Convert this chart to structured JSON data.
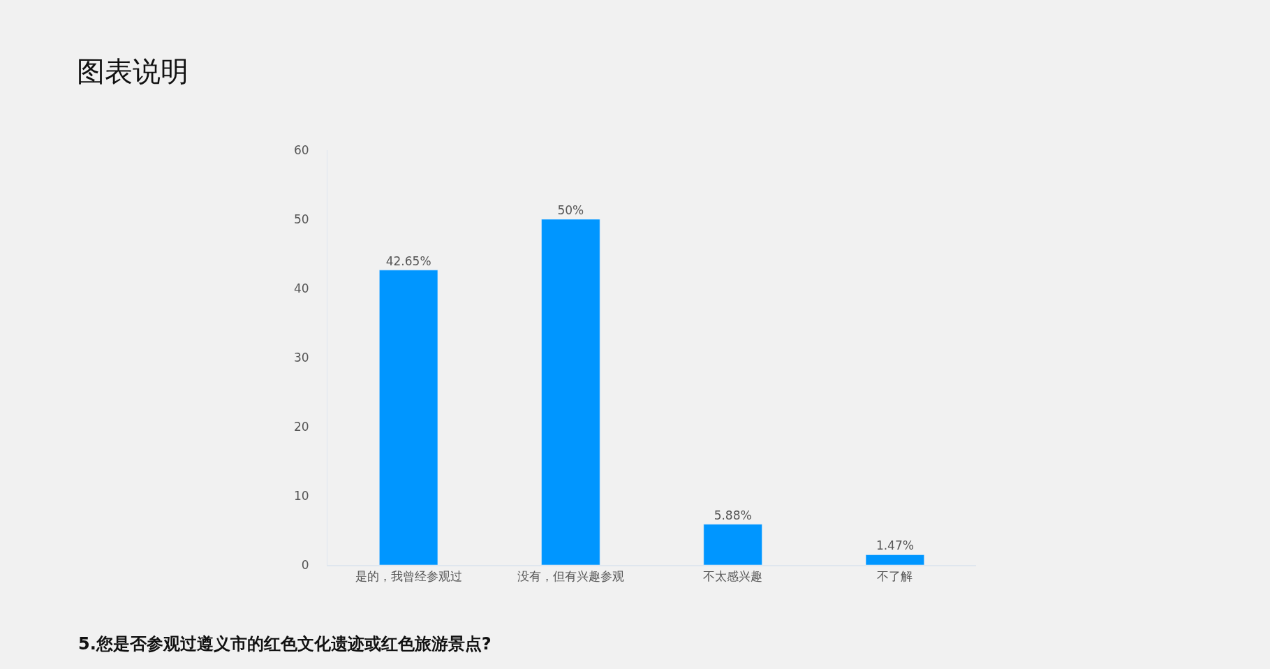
{
  "chart_data": {
    "type": "bar",
    "title": "图表说明",
    "categories": [
      "是的，我曾经参观过",
      "没有，但有兴趣参观",
      "不太感兴趣",
      "不了解"
    ],
    "values": [
      42.65,
      50,
      5.88,
      1.47
    ],
    "value_labels": [
      "42.65%",
      "50%",
      "5.88%",
      "1.47%"
    ],
    "color": "#0096ff",
    "ylim": [
      0,
      60
    ],
    "yticks": [
      0,
      10,
      20,
      30,
      40,
      50,
      60
    ],
    "grid": false,
    "annotations": [
      "5.您是否参观过遵义市的红色文化遗迹或红色旅游景点?"
    ]
  }
}
